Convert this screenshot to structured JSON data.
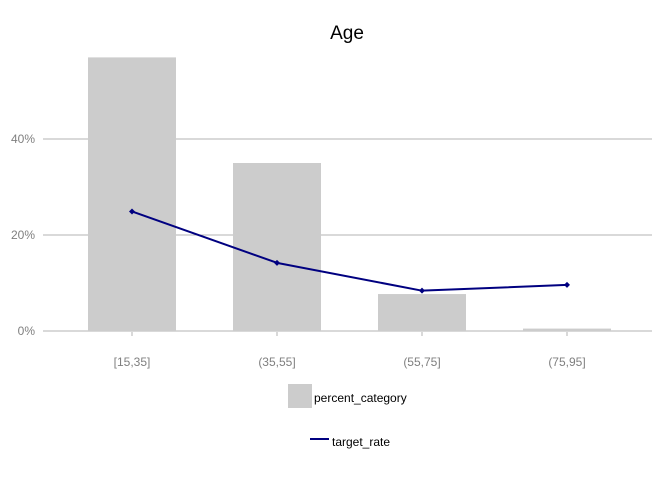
{
  "chart_data": {
    "type": "bar",
    "title": "Age",
    "xlabel": "",
    "ylabel": "",
    "categories": [
      "[15,35]",
      "(35,55]",
      "(55,75]",
      "(75,95]"
    ],
    "ylim": [
      0,
      0.6
    ],
    "yticks": [
      0,
      0.2,
      0.4
    ],
    "ytick_labels": [
      "0%",
      "20%",
      "40%"
    ],
    "grid": "horizontal",
    "legend_position": "bottom",
    "series": [
      {
        "name": "percent_category",
        "type": "bar",
        "color": "#cccccc",
        "values": [
          0.57,
          0.35,
          0.077,
          0.005
        ]
      },
      {
        "name": "target_rate",
        "type": "line",
        "color": "#000080",
        "values": [
          0.249,
          0.142,
          0.084,
          0.096
        ]
      }
    ]
  }
}
